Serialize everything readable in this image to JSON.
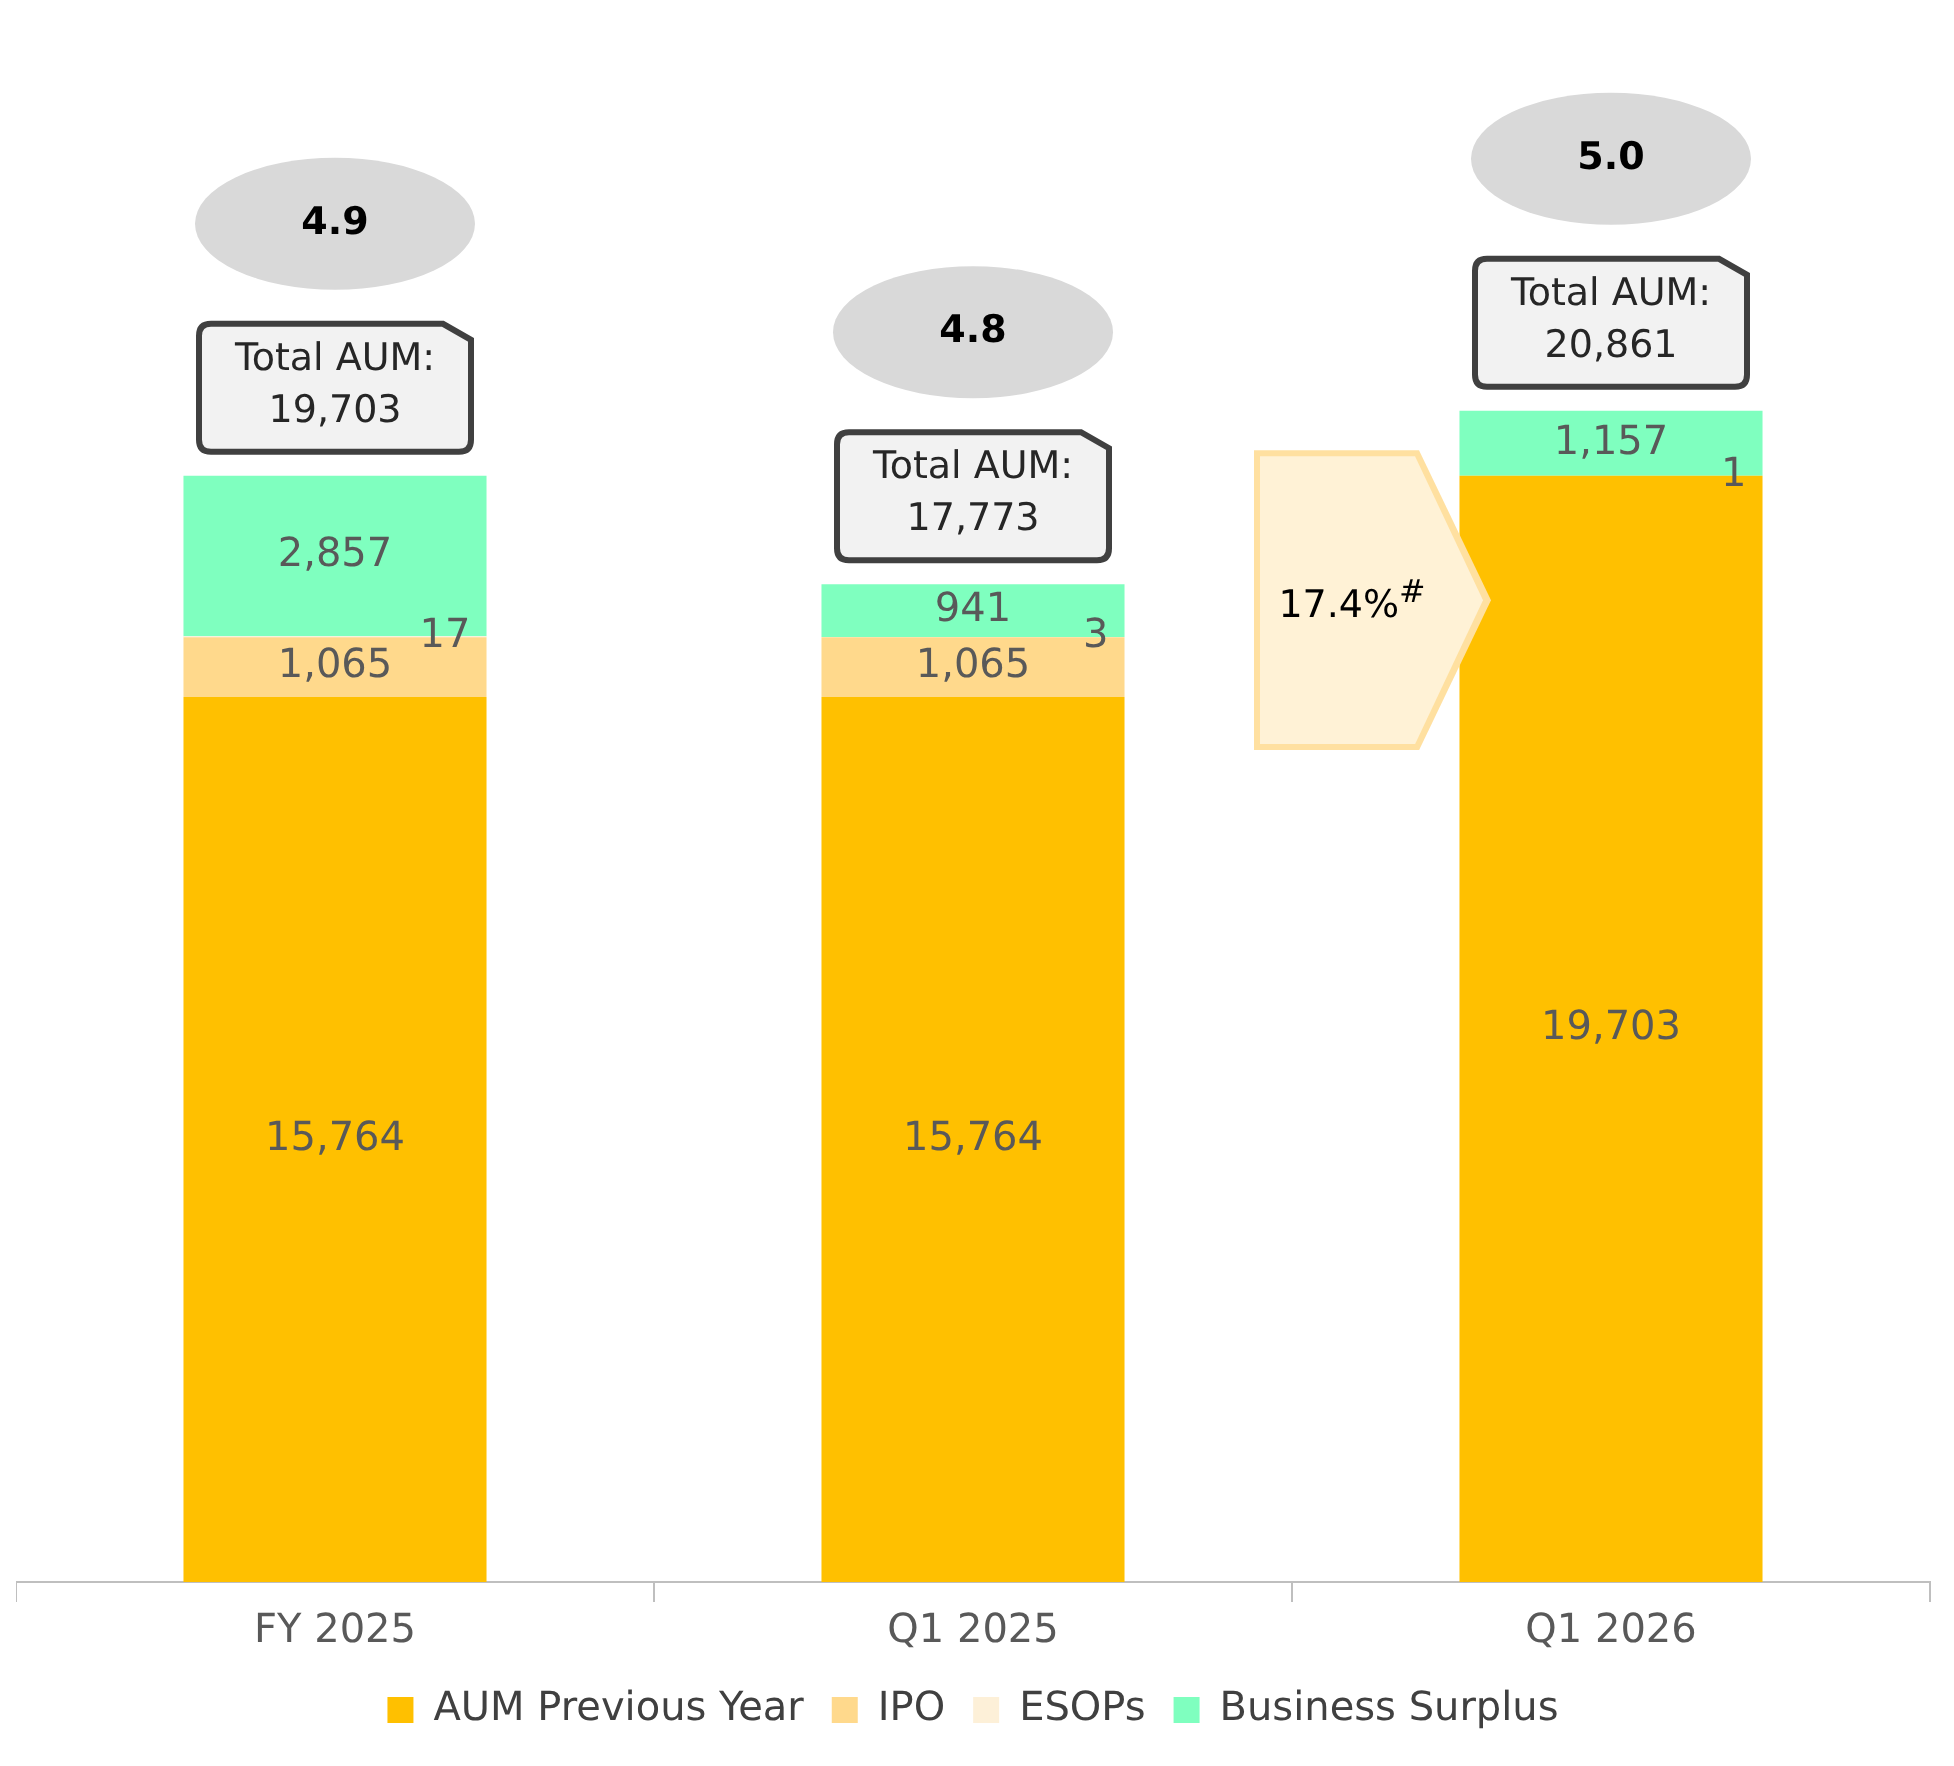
{
  "chart_data": {
    "type": "bar",
    "stacked": true,
    "categories": [
      "FY 2025",
      "Q1 2025",
      "Q1 2026"
    ],
    "series": [
      {
        "name": "AUM Previous Year",
        "color": "#ffc000",
        "values": [
          15764,
          15764,
          19703
        ],
        "value_labels": [
          "15,764",
          "15,764",
          "19,703"
        ]
      },
      {
        "name": "IPO",
        "color": "#ffd98c",
        "values": [
          1065,
          1065,
          null
        ],
        "value_labels": [
          "1,065",
          "1,065",
          null
        ]
      },
      {
        "name": "ESOPs",
        "color": "#fdf0d8",
        "values": [
          17,
          3,
          1
        ],
        "value_labels": [
          "17",
          "3",
          "1"
        ]
      },
      {
        "name": "Business Surplus",
        "color": "#7fffbf",
        "values": [
          2857,
          941,
          1157
        ],
        "value_labels": [
          "2,857",
          "941",
          "1,157"
        ]
      }
    ],
    "totals": [
      "Total AUM: 19,703",
      "Total AUM: 17,773",
      "Total AUM: 20,861"
    ],
    "annotations": [
      "4.9",
      "4.8",
      "5.0",
      "17.4%$^{#}$"
    ],
    "legend": "bottom",
    "grid": false
  }
}
